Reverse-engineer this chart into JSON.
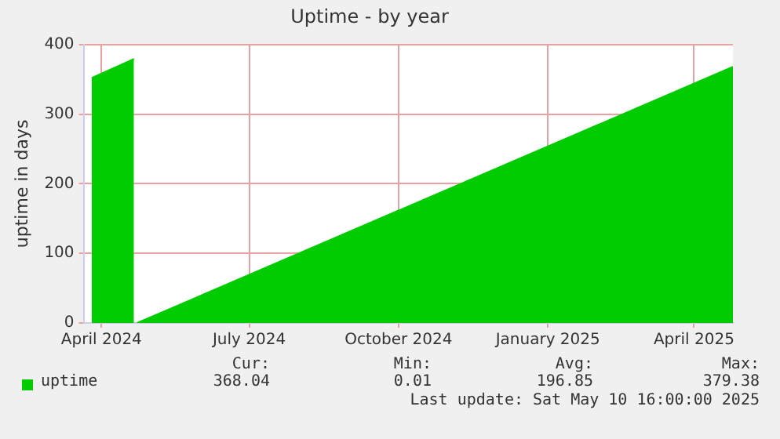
{
  "chart_data": {
    "type": "area",
    "title": "Uptime - by year",
    "ylabel": "uptime in days",
    "series": [
      {
        "name": "uptime",
        "color": "#00cc00",
        "x": [
          "2024-04-10",
          "2024-05-06",
          "2024-05-07",
          "2024-05-08",
          "2025-05-10"
        ],
        "values": [
          352,
          379.38,
          null,
          0.01,
          368.04
        ]
      }
    ],
    "xlim": [
      "2024-04-05",
      "2025-05-10"
    ],
    "xticks": [
      {
        "value": "2024-04-16",
        "label": "April 2024"
      },
      {
        "value": "2024-07-16",
        "label": "July 2024"
      },
      {
        "value": "2024-10-16",
        "label": "October 2024"
      },
      {
        "value": "2025-01-16",
        "label": "January 2025"
      },
      {
        "value": "2025-04-16",
        "label": "April 2025"
      }
    ],
    "ylim": [
      0,
      400
    ],
    "yticks": [
      0,
      100,
      200,
      300,
      400
    ],
    "grid": true,
    "legend": "bottom",
    "annotations": [
      "Cur:",
      "368.04",
      "Min:",
      "0.01",
      "Avg:",
      "196.85",
      "Max:",
      "379.38",
      "Last update: Sat May 10 16:00:00 2025"
    ]
  }
}
